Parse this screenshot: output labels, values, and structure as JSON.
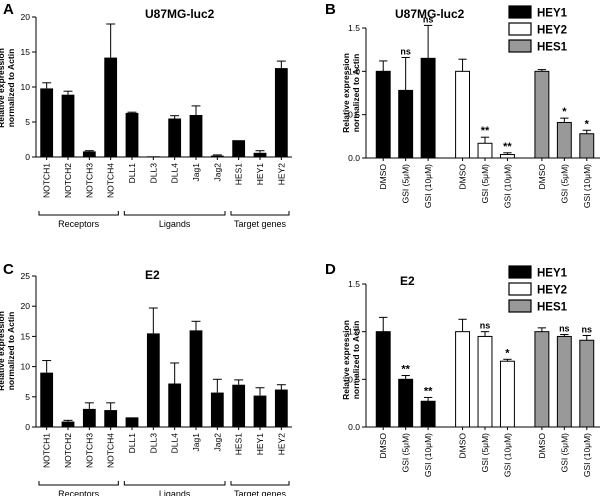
{
  "chart_data": [
    {
      "id": "A",
      "type": "bar",
      "panel_letter": "A",
      "title": "U87MG-luc2",
      "ylabel": [
        "Relative expression",
        "normalized to Actin"
      ],
      "ylim": [
        0,
        20
      ],
      "yticks": [
        "0",
        "5",
        "10",
        "15",
        "20"
      ],
      "categories": [
        "NOTCH1",
        "NOTCH2",
        "NOTCH3",
        "NOTCH4",
        "DLL1",
        "DLL3",
        "DLL4",
        "Jag1",
        "Jag2",
        "HES1",
        "HEY1",
        "HEY2"
      ],
      "values": [
        9.8,
        8.9,
        0.8,
        14.2,
        6.3,
        0.1,
        5.5,
        6.0,
        0.2,
        2.4,
        0.6,
        12.7
      ],
      "errors": [
        0.8,
        0.5,
        0.1,
        4.8,
        0.1,
        0.0,
        0.4,
        1.3,
        0.1,
        0.0,
        0.3,
        1.0
      ],
      "groups": [
        {
          "label": "Receptors",
          "start": 0,
          "end": 3
        },
        {
          "label": "Ligands",
          "start": 4,
          "end": 8
        },
        {
          "label": "Target genes",
          "start": 9,
          "end": 11
        }
      ]
    },
    {
      "id": "B",
      "type": "grouped-bar",
      "panel_letter": "B",
      "title": "U87MG-luc2",
      "ylabel": [
        "Relative expression",
        "normalized to Actin"
      ],
      "ylim": [
        0,
        1.5
      ],
      "yticks": [
        "0.0",
        "0.5",
        "1.0",
        "1.5"
      ],
      "categories": [
        "DMSO",
        "GSI (5μM)",
        "GSI (10μM)"
      ],
      "series": [
        {
          "name": "HEY1",
          "color": "#000000",
          "values": [
            1.0,
            0.78,
            1.15
          ],
          "errors": [
            0.12,
            0.38,
            0.38
          ],
          "annotations": [
            "",
            "ns",
            "ns"
          ]
        },
        {
          "name": "HEY2",
          "color": "#ffffff",
          "values": [
            1.0,
            0.17,
            0.04
          ],
          "errors": [
            0.14,
            0.07,
            0.02
          ],
          "annotations": [
            "",
            "**",
            "**"
          ]
        },
        {
          "name": "HES1",
          "color": "#999999",
          "values": [
            1.0,
            0.41,
            0.28
          ],
          "errors": [
            0.02,
            0.05,
            0.04
          ],
          "annotations": [
            "",
            "*",
            "*"
          ]
        }
      ]
    },
    {
      "id": "C",
      "type": "bar",
      "panel_letter": "C",
      "title": "E2",
      "ylabel": [
        "Relative expression",
        "normalized to Actin"
      ],
      "ylim": [
        0,
        25
      ],
      "yticks": [
        "0",
        "5",
        "10",
        "15",
        "20",
        "25"
      ],
      "categories": [
        "NOTCH1",
        "NOTCH2",
        "NOTCH3",
        "NOTCH4",
        "DLL1",
        "DLL3",
        "DLL4",
        "Jag1",
        "Jag2",
        "HES1",
        "HEY1",
        "HEY2"
      ],
      "values": [
        9.0,
        0.9,
        3.0,
        2.8,
        1.6,
        15.5,
        7.2,
        16.0,
        5.7,
        7.0,
        5.2,
        6.2
      ],
      "errors": [
        2.0,
        0.2,
        1.0,
        1.2,
        0.0,
        4.2,
        3.4,
        1.5,
        2.2,
        0.8,
        1.3,
        0.8
      ],
      "groups": [
        {
          "label": "Receptors",
          "start": 0,
          "end": 3
        },
        {
          "label": "Ligands",
          "start": 4,
          "end": 8
        },
        {
          "label": "Target genes",
          "start": 9,
          "end": 11
        }
      ]
    },
    {
      "id": "D",
      "type": "grouped-bar",
      "panel_letter": "D",
      "title": "E2",
      "ylabel": [
        "Relative expression",
        "normalized to Actin"
      ],
      "ylim": [
        0,
        1.5
      ],
      "yticks": [
        "0.0",
        "0.5",
        "1.0",
        "1.5"
      ],
      "categories": [
        "DMSO",
        "GSI (5μM)",
        "GSI (10μM)"
      ],
      "series": [
        {
          "name": "HEY1",
          "color": "#000000",
          "values": [
            1.0,
            0.5,
            0.27
          ],
          "errors": [
            0.15,
            0.04,
            0.04
          ],
          "annotations": [
            "",
            "**",
            "**"
          ]
        },
        {
          "name": "HEY2",
          "color": "#ffffff",
          "values": [
            1.0,
            0.95,
            0.69
          ],
          "errors": [
            0.13,
            0.05,
            0.02
          ],
          "annotations": [
            "",
            "ns",
            "*"
          ]
        },
        {
          "name": "HES1",
          "color": "#999999",
          "values": [
            1.0,
            0.95,
            0.91
          ],
          "errors": [
            0.04,
            0.02,
            0.05
          ],
          "annotations": [
            "",
            "ns",
            "ns"
          ]
        }
      ]
    }
  ]
}
